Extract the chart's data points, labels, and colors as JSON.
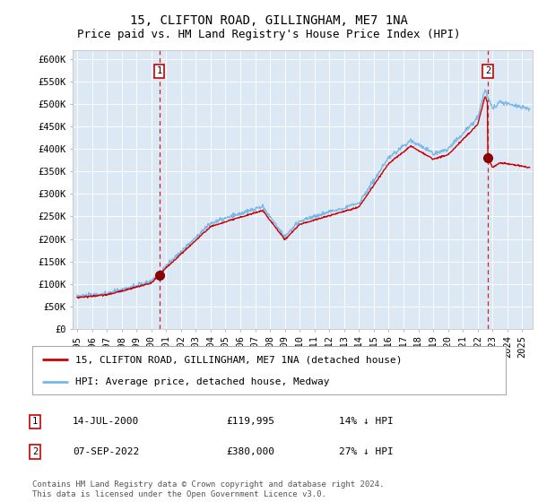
{
  "title": "15, CLIFTON ROAD, GILLINGHAM, ME7 1NA",
  "subtitle": "Price paid vs. HM Land Registry's House Price Index (HPI)",
  "ylim": [
    0,
    620000
  ],
  "yticks": [
    0,
    50000,
    100000,
    150000,
    200000,
    250000,
    300000,
    350000,
    400000,
    450000,
    500000,
    550000,
    600000
  ],
  "ytick_labels": [
    "£0",
    "£50K",
    "£100K",
    "£150K",
    "£200K",
    "£250K",
    "£300K",
    "£350K",
    "£400K",
    "£450K",
    "£500K",
    "£550K",
    "£600K"
  ],
  "bg_color": "#dce9f5",
  "hpi_color": "#7ab8e8",
  "price_color": "#cc0000",
  "marker_color": "#8b0000",
  "dashed_line_color": "#cc0000",
  "sale1_date": 2000.54,
  "sale1_price": 119995,
  "sale2_date": 2022.68,
  "sale2_price": 380000,
  "legend_label1": "15, CLIFTON ROAD, GILLINGHAM, ME7 1NA (detached house)",
  "legend_label2": "HPI: Average price, detached house, Medway",
  "annotation1_date": "14-JUL-2000",
  "annotation1_price": "£119,995",
  "annotation1_hpi": "14% ↓ HPI",
  "annotation2_date": "07-SEP-2022",
  "annotation2_price": "£380,000",
  "annotation2_hpi": "27% ↓ HPI",
  "footer": "Contains HM Land Registry data © Crown copyright and database right 2024.\nThis data is licensed under the Open Government Licence v3.0.",
  "title_fontsize": 10,
  "subtitle_fontsize": 9,
  "tick_fontsize": 7.5,
  "legend_fontsize": 8,
  "annotation_fontsize": 8,
  "footer_fontsize": 6.5
}
